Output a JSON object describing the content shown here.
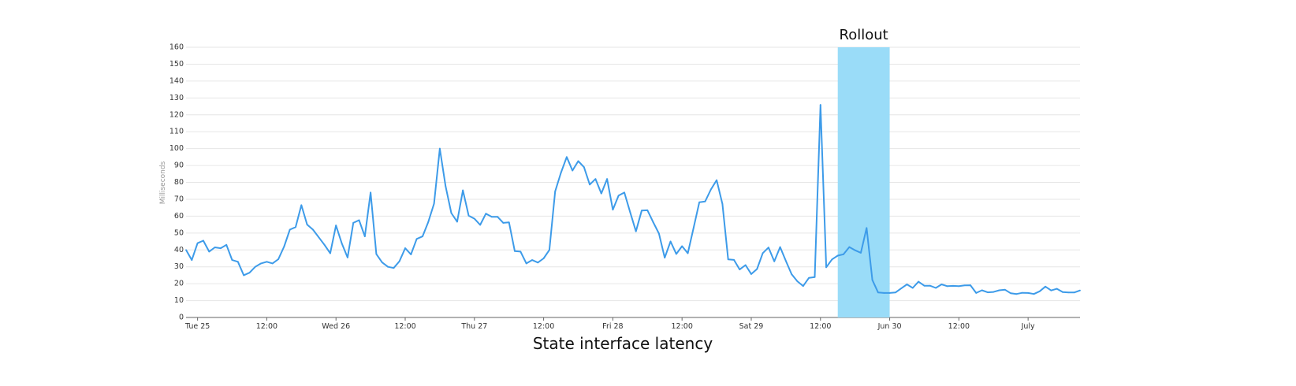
{
  "chart_data": {
    "type": "line",
    "title": "State interface latency",
    "xlabel": "",
    "ylabel": "Milliseconds",
    "ylim": [
      0,
      160
    ],
    "yticks": [
      0,
      10,
      20,
      30,
      40,
      50,
      60,
      70,
      80,
      90,
      100,
      110,
      120,
      130,
      140,
      150,
      160
    ],
    "grid": true,
    "legend": "none",
    "line_color": "#3d9be9",
    "xticks": [
      {
        "at": "06-25 00:00",
        "label": "Tue 25"
      },
      {
        "at": "06-25 12:00",
        "label": "12:00"
      },
      {
        "at": "06-26 00:00",
        "label": "Wed 26"
      },
      {
        "at": "06-26 12:00",
        "label": "12:00"
      },
      {
        "at": "06-27 00:00",
        "label": "Thu 27"
      },
      {
        "at": "06-27 12:00",
        "label": "12:00"
      },
      {
        "at": "06-28 00:00",
        "label": "Fri 28"
      },
      {
        "at": "06-28 12:00",
        "label": "12:00"
      },
      {
        "at": "06-29 00:00",
        "label": "Sat 29"
      },
      {
        "at": "06-29 12:00",
        "label": "12:00"
      },
      {
        "at": "06-30 00:00",
        "label": "Jun 30"
      },
      {
        "at": "06-30 12:00",
        "label": "12:00"
      },
      {
        "at": "07-01 00:00",
        "label": "July"
      }
    ],
    "annotations": [
      {
        "type": "band",
        "label": "Rollout",
        "from": "06-29 15:00",
        "to": "06-30 00:00",
        "color": "#9adcf8"
      }
    ],
    "x_start": "06-24 22:00",
    "x_step_hours": 1,
    "values": [
      40,
      34,
      44,
      45.5,
      39,
      41.5,
      41,
      43,
      34,
      33,
      25,
      26.5,
      30,
      32,
      33,
      32,
      34.5,
      42,
      52,
      53.5,
      66.5,
      55,
      52,
      47.5,
      43,
      38,
      54.5,
      44,
      35.5,
      56,
      57.6,
      48,
      74,
      37.5,
      32.6,
      30,
      29.3,
      33.3,
      41,
      37.3,
      46.5,
      48,
      56.6,
      67.4,
      100,
      77.8,
      61.8,
      56.7,
      75.3,
      60.3,
      58.5,
      54.8,
      61.5,
      59.6,
      59.6,
      56,
      56.3,
      39.3,
      39,
      32,
      34,
      32.5,
      35,
      40,
      74.6,
      85.6,
      95,
      87,
      92.6,
      89,
      78.7,
      82,
      73.4,
      82,
      63.8,
      72.2,
      74,
      62.4,
      51,
      63.3,
      63.5,
      56.4,
      49.7,
      35.4,
      45,
      37.6,
      42.2,
      38,
      53,
      68.2,
      68.7,
      75.8,
      81.3,
      67.2,
      34.4,
      34.1,
      28.4,
      31,
      25.7,
      28.7,
      38.1,
      41.4,
      33.2,
      41.7,
      33.5,
      25.6,
      21.4,
      18.6,
      23.4,
      23.9,
      125.9,
      29.7,
      34.4,
      36.6,
      37.4,
      41.7,
      39.8,
      38.3,
      53,
      22.2,
      14.8,
      14.5,
      14.5,
      14.8,
      17.2,
      19.6,
      17.5,
      21.2,
      18.8,
      18.8,
      17.5,
      19.6,
      18.5,
      18.7,
      18.5,
      19,
      19.1,
      14.5,
      16.1,
      14.9,
      15.1,
      16.1,
      16.4,
      14.3,
      13.9,
      14.6,
      14.5,
      13.9,
      15.5,
      18.3,
      16,
      17,
      15,
      14.8,
      14.8,
      16
    ]
  }
}
